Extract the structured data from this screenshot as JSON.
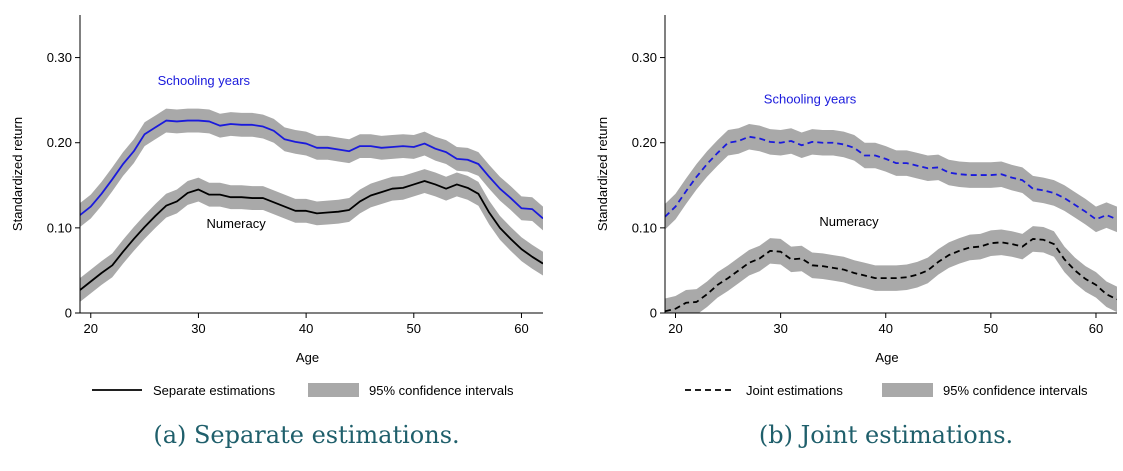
{
  "chart_data": [
    {
      "type": "line",
      "caption": "(a)  Separate estimations.",
      "xlabel": "Age",
      "ylabel": "Standardized return",
      "xlim": [
        19,
        62
      ],
      "ylim": [
        0,
        0.35
      ],
      "xticks": [
        "20",
        "30",
        "40",
        "50",
        "60"
      ],
      "yticks": [
        "0",
        "0.10",
        "0.20",
        "0.30"
      ],
      "line_style": "solid",
      "legend": {
        "line_label": "Separate estimations",
        "band_label": "95% confidence intervals",
        "position": "bottom"
      },
      "series": [
        {
          "name": "Schooling years",
          "color": "#1a1adc",
          "ci_halfwidth": 0.014,
          "x": [
            19,
            20,
            21,
            22,
            23,
            24,
            25,
            26,
            27,
            28,
            29,
            30,
            31,
            32,
            33,
            34,
            35,
            36,
            37,
            38,
            39,
            40,
            41,
            42,
            43,
            44,
            45,
            46,
            47,
            48,
            49,
            50,
            51,
            52,
            53,
            54,
            55,
            56,
            57,
            58,
            59,
            60,
            61,
            62
          ],
          "values": [
            0.115,
            0.125,
            0.14,
            0.157,
            0.175,
            0.19,
            0.21,
            0.218,
            0.226,
            0.225,
            0.226,
            0.226,
            0.225,
            0.22,
            0.222,
            0.221,
            0.221,
            0.219,
            0.214,
            0.204,
            0.201,
            0.199,
            0.194,
            0.194,
            0.192,
            0.19,
            0.196,
            0.196,
            0.194,
            0.195,
            0.196,
            0.195,
            0.199,
            0.193,
            0.189,
            0.181,
            0.18,
            0.175,
            0.16,
            0.146,
            0.135,
            0.123,
            0.122,
            0.111
          ]
        },
        {
          "name": "Numeracy",
          "color": "#000000",
          "ci_halfwidth": 0.014,
          "x": [
            19,
            20,
            21,
            22,
            23,
            24,
            25,
            26,
            27,
            28,
            29,
            30,
            31,
            32,
            33,
            34,
            35,
            36,
            37,
            38,
            39,
            40,
            41,
            42,
            43,
            44,
            45,
            46,
            47,
            48,
            49,
            50,
            51,
            52,
            53,
            54,
            55,
            56,
            57,
            58,
            59,
            60,
            61,
            62
          ],
          "values": [
            0.027,
            0.037,
            0.047,
            0.056,
            0.072,
            0.087,
            0.101,
            0.114,
            0.126,
            0.131,
            0.141,
            0.145,
            0.139,
            0.139,
            0.136,
            0.136,
            0.135,
            0.135,
            0.13,
            0.125,
            0.12,
            0.12,
            0.117,
            0.118,
            0.119,
            0.121,
            0.131,
            0.138,
            0.142,
            0.146,
            0.147,
            0.151,
            0.155,
            0.151,
            0.146,
            0.151,
            0.147,
            0.14,
            0.118,
            0.1,
            0.087,
            0.075,
            0.066,
            0.058
          ]
        }
      ]
    },
    {
      "type": "line",
      "caption": "(b)  Joint estimations.",
      "xlabel": "Age",
      "ylabel": "Standardized return",
      "xlim": [
        19,
        62
      ],
      "ylim": [
        0,
        0.35
      ],
      "xticks": [
        "20",
        "30",
        "40",
        "50",
        "60"
      ],
      "yticks": [
        "0",
        "0.10",
        "0.20",
        "0.30"
      ],
      "line_style": "dashed",
      "legend": {
        "line_label": "Joint estimations",
        "band_label": "95% confidence intervals",
        "position": "bottom"
      },
      "series": [
        {
          "name": "Schooling years",
          "color": "#1a1adc",
          "ci_halfwidth": 0.015,
          "x": [
            19,
            20,
            21,
            22,
            23,
            24,
            25,
            26,
            27,
            28,
            29,
            30,
            31,
            32,
            33,
            34,
            35,
            36,
            37,
            38,
            39,
            40,
            41,
            42,
            43,
            44,
            45,
            46,
            47,
            48,
            49,
            50,
            51,
            52,
            53,
            54,
            55,
            56,
            57,
            58,
            59,
            60,
            61,
            62
          ],
          "values": [
            0.113,
            0.125,
            0.143,
            0.16,
            0.175,
            0.188,
            0.2,
            0.202,
            0.207,
            0.205,
            0.201,
            0.2,
            0.202,
            0.197,
            0.201,
            0.2,
            0.2,
            0.198,
            0.194,
            0.185,
            0.185,
            0.181,
            0.176,
            0.176,
            0.173,
            0.17,
            0.171,
            0.165,
            0.163,
            0.162,
            0.162,
            0.162,
            0.163,
            0.159,
            0.156,
            0.146,
            0.144,
            0.141,
            0.135,
            0.127,
            0.119,
            0.11,
            0.115,
            0.11
          ]
        },
        {
          "name": "Numeracy",
          "color": "#000000",
          "ci_halfwidth": 0.015,
          "x": [
            19,
            20,
            21,
            22,
            23,
            24,
            25,
            26,
            27,
            28,
            29,
            30,
            31,
            32,
            33,
            34,
            35,
            36,
            37,
            38,
            39,
            40,
            41,
            42,
            43,
            44,
            45,
            46,
            47,
            48,
            49,
            50,
            51,
            52,
            53,
            54,
            55,
            56,
            57,
            58,
            59,
            60,
            61,
            62
          ],
          "values": [
            0.002,
            0.005,
            0.012,
            0.013,
            0.022,
            0.033,
            0.041,
            0.05,
            0.059,
            0.064,
            0.073,
            0.072,
            0.063,
            0.064,
            0.056,
            0.055,
            0.053,
            0.051,
            0.047,
            0.044,
            0.041,
            0.041,
            0.041,
            0.042,
            0.045,
            0.05,
            0.06,
            0.068,
            0.073,
            0.077,
            0.078,
            0.082,
            0.083,
            0.081,
            0.078,
            0.087,
            0.086,
            0.081,
            0.063,
            0.05,
            0.04,
            0.033,
            0.022,
            0.016
          ]
        }
      ]
    }
  ],
  "annotations": [
    [
      {
        "text": "Schooling years",
        "color": "#1a1adc",
        "x": 30.5,
        "y": 0.268
      },
      {
        "text": "Numeracy",
        "color": "#000000",
        "x": 33.5,
        "y": 0.1
      }
    ],
    [
      {
        "text": "Schooling years",
        "color": "#1a1adc",
        "x": 32.8,
        "y": 0.246
      },
      {
        "text": "Numeracy",
        "color": "#000000",
        "x": 36.5,
        "y": 0.102
      }
    ]
  ]
}
